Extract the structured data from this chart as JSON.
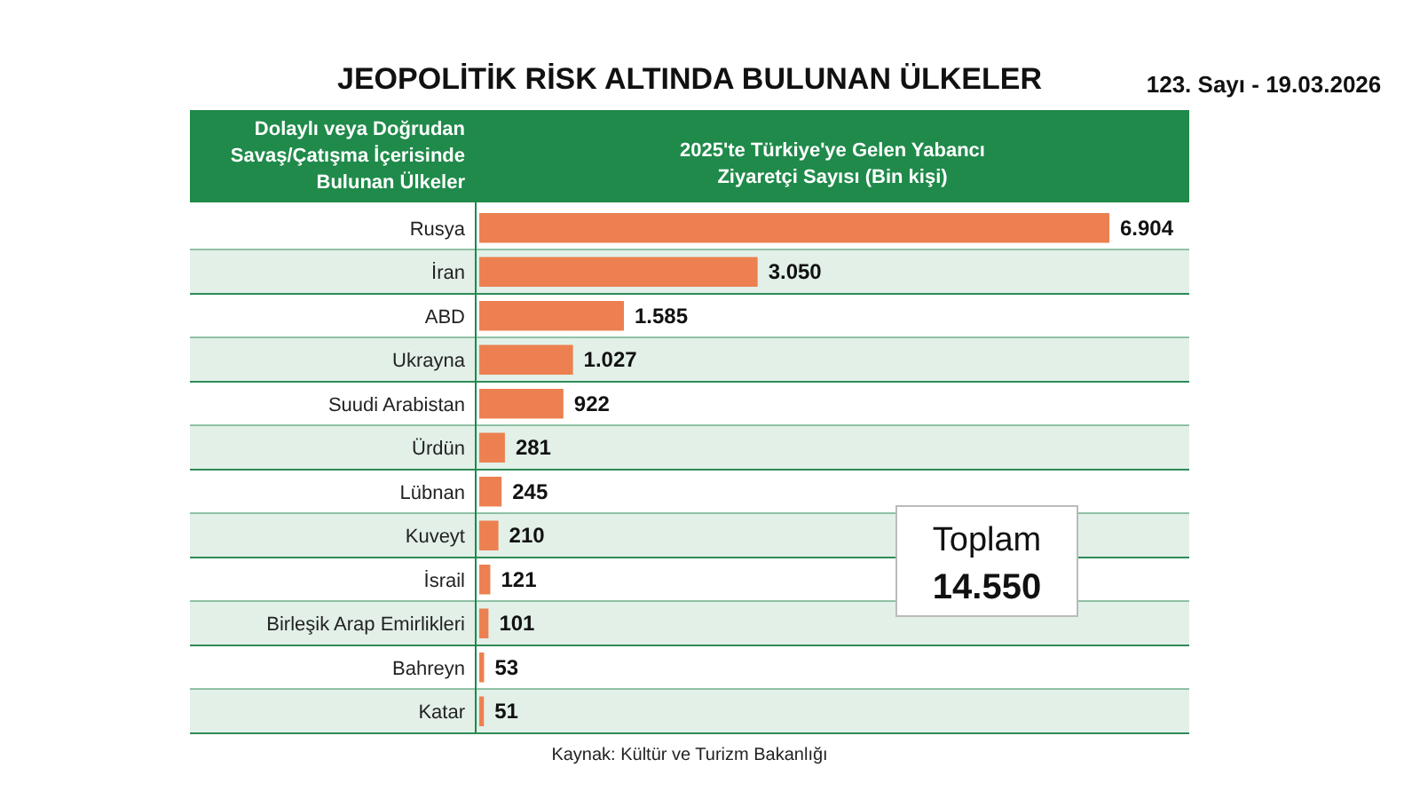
{
  "chart_data": {
    "type": "bar",
    "orientation": "horizontal",
    "title": "JEOPOLİTİK RİSK ALTINDA BULUNAN ÜLKELER",
    "ylabel": "Dolaylı veya Doğrudan Savaş/Çatışma İçerisinde Bulunan Ülkeler",
    "xlabel": "2025'te Türkiye'ye Gelen Yabancı Ziyaretçi Sayısı (Bin kişi)",
    "categories": [
      "Rusya",
      "İran",
      "ABD",
      "Ukrayna",
      "Suudi Arabistan",
      "Ürdün",
      "Lübnan",
      "Kuveyt",
      "İsrail",
      "Birleşik Arap Emirlikleri",
      "Bahreyn",
      "Katar"
    ],
    "values": [
      6904,
      3050,
      1585,
      1027,
      922,
      281,
      245,
      210,
      121,
      101,
      53,
      51
    ],
    "value_labels": [
      "6.904",
      "3.050",
      "1.585",
      "1.027",
      "922",
      "281",
      "245",
      "210",
      "121",
      "101",
      "53",
      "51"
    ],
    "color": "#ec8050",
    "annotations": [
      "123. Sayı - 19.03.2026",
      "Toplam",
      "14.550",
      "Kaynak: Kültür ve Turizm Bakanlığı"
    ],
    "tick_labels": "y"
  }
}
